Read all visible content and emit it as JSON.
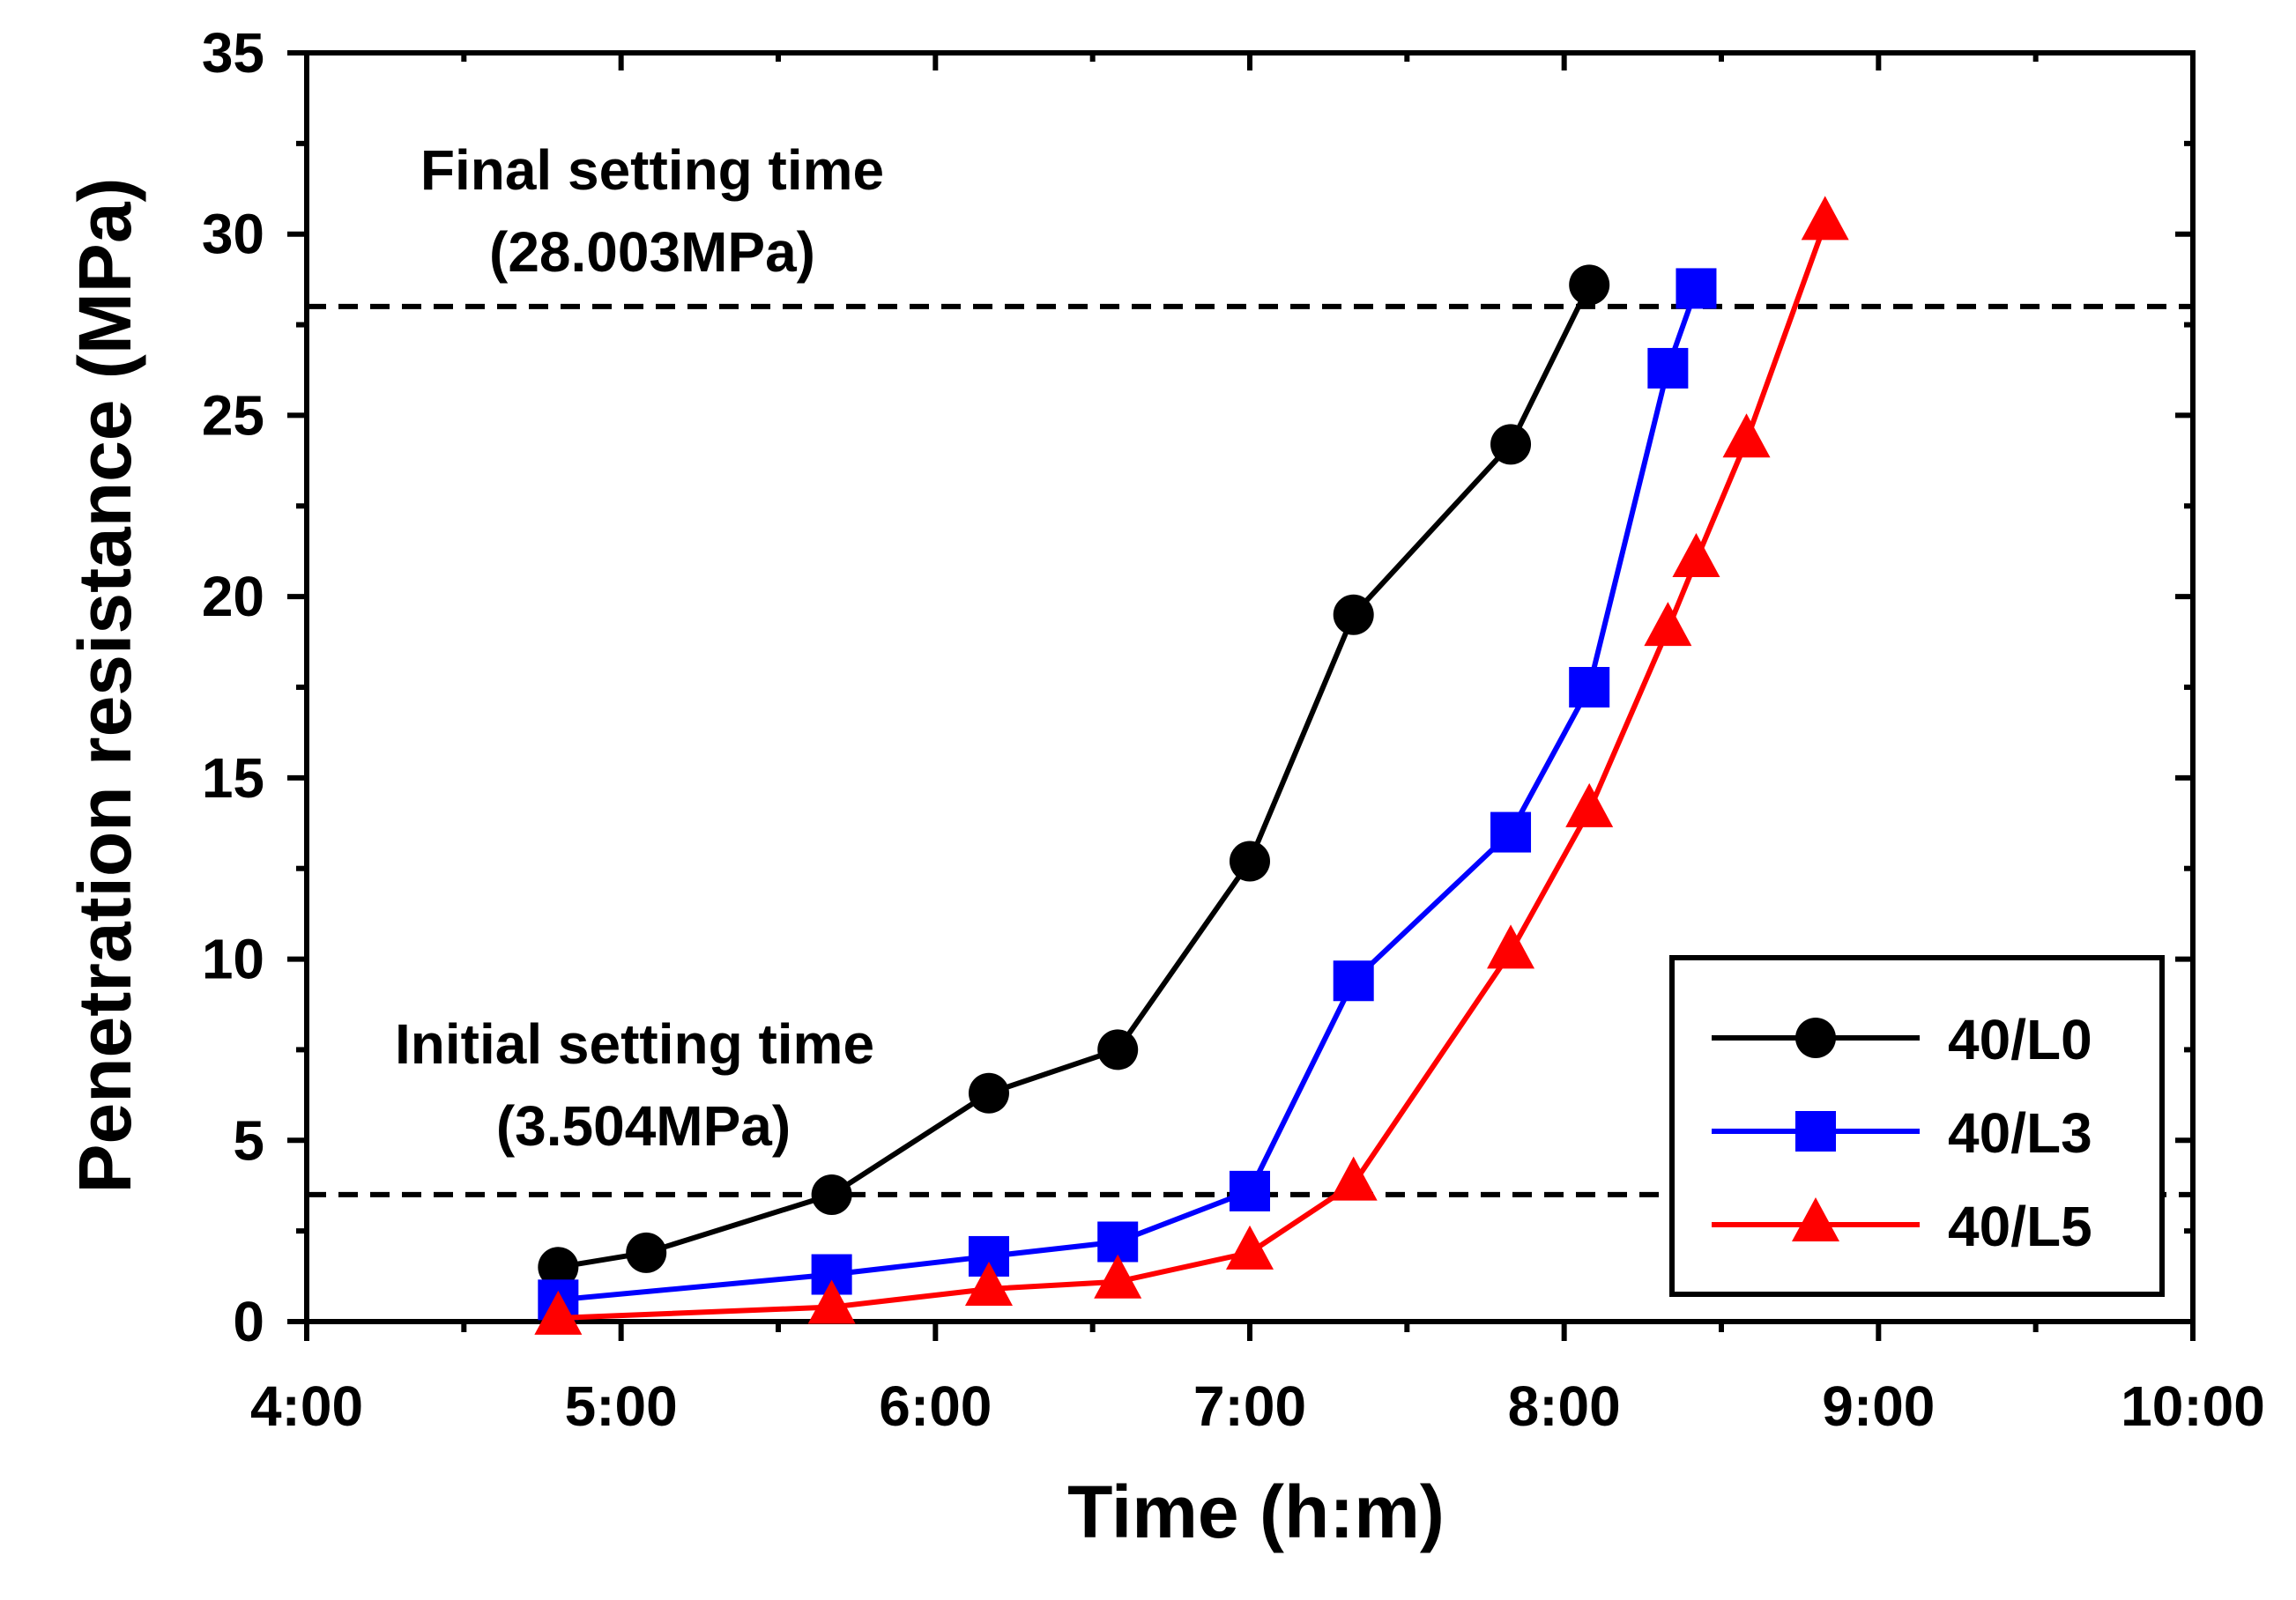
{
  "chart_data": {
    "type": "line",
    "xlabel": "Time (h:m)",
    "ylabel": "Penetration resistance (MPa)",
    "xlim": [
      4.0,
      10.0
    ],
    "ylim": [
      0,
      35
    ],
    "x_ticks": [
      {
        "value": 4.0,
        "label": "4:00"
      },
      {
        "value": 5.0,
        "label": "5:00"
      },
      {
        "value": 6.0,
        "label": "6:00"
      },
      {
        "value": 7.0,
        "label": "7:00"
      },
      {
        "value": 8.0,
        "label": "8:00"
      },
      {
        "value": 9.0,
        "label": "9:00"
      },
      {
        "value": 10.0,
        "label": "10:00"
      }
    ],
    "y_ticks": [
      {
        "value": 0,
        "label": "0"
      },
      {
        "value": 5,
        "label": "5"
      },
      {
        "value": 10,
        "label": "10"
      },
      {
        "value": 15,
        "label": "15"
      },
      {
        "value": 20,
        "label": "20"
      },
      {
        "value": 25,
        "label": "25"
      },
      {
        "value": 30,
        "label": "30"
      },
      {
        "value": 35,
        "label": "35"
      }
    ],
    "reference_lines": [
      {
        "y": 28.003,
        "label_line1": "Final setting time",
        "label_line2": "(28.003MPa)"
      },
      {
        "y": 3.504,
        "label_line1": "Initial setting time",
        "label_line2": "(3.504MPa)"
      }
    ],
    "series": [
      {
        "name": "40/L0",
        "color": "#000000",
        "marker": "circle",
        "x": [
          4.8,
          5.08,
          5.67,
          6.17,
          6.58,
          7.0,
          7.33,
          7.83,
          8.08
        ],
        "y": [
          1.5,
          1.9,
          3.5,
          6.3,
          7.5,
          12.7,
          19.5,
          24.2,
          28.6
        ]
      },
      {
        "name": "40/L3",
        "color": "#0000ff",
        "marker": "square",
        "x": [
          4.8,
          5.67,
          6.17,
          6.58,
          7.0,
          7.33,
          7.83,
          8.08,
          8.33,
          8.42
        ],
        "y": [
          0.6,
          1.3,
          1.8,
          2.2,
          3.6,
          9.4,
          13.5,
          17.5,
          26.3,
          28.5
        ]
      },
      {
        "name": "40/L5",
        "color": "#ff0000",
        "marker": "triangle",
        "x": [
          4.8,
          5.67,
          6.17,
          6.58,
          7.0,
          7.33,
          7.83,
          8.08,
          8.33,
          8.42,
          8.58,
          8.83
        ],
        "y": [
          0.1,
          0.4,
          0.9,
          1.1,
          1.9,
          3.8,
          10.2,
          14.1,
          19.1,
          21.0,
          24.3,
          30.3
        ]
      }
    ],
    "legend": {
      "position": "bottom-right"
    }
  }
}
